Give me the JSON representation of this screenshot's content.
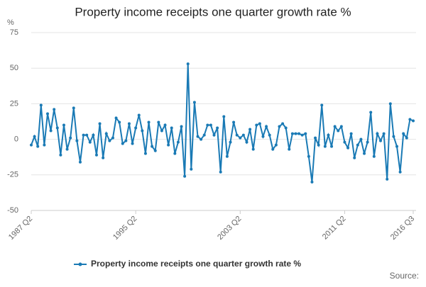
{
  "chart_data": {
    "type": "line",
    "title": "Property income receipts one quarter growth rate %",
    "y_unit": "%",
    "source": "Source:",
    "categories": [
      "1987 Q2",
      null,
      null,
      null,
      null,
      null,
      null,
      null,
      null,
      null,
      null,
      null,
      null,
      null,
      null,
      null,
      null,
      null,
      null,
      null,
      null,
      null,
      null,
      null,
      null,
      null,
      null,
      null,
      null,
      null,
      null,
      null,
      "1995 Q2",
      null,
      null,
      null,
      null,
      null,
      null,
      null,
      null,
      null,
      null,
      null,
      null,
      null,
      null,
      null,
      null,
      null,
      null,
      null,
      null,
      null,
      null,
      null,
      null,
      null,
      null,
      null,
      null,
      null,
      null,
      null,
      "2003 Q2",
      null,
      null,
      null,
      null,
      null,
      null,
      null,
      null,
      null,
      null,
      null,
      null,
      null,
      null,
      null,
      null,
      null,
      null,
      null,
      null,
      null,
      null,
      null,
      null,
      null,
      null,
      null,
      null,
      null,
      null,
      null,
      "2011 Q2",
      null,
      null,
      null,
      null,
      null,
      null,
      null,
      null,
      null,
      null,
      null,
      null,
      null,
      null,
      null,
      null,
      null,
      null,
      null,
      null,
      "2016 Q3"
    ],
    "series": [
      {
        "name": "Property income receipts one quarter growth rate %",
        "color": "#1a7ab5",
        "values": [
          -4,
          2,
          -5,
          24,
          -4,
          18,
          6,
          21,
          8,
          -11,
          10,
          -7,
          1,
          22,
          -1,
          -16,
          3,
          3,
          -2,
          3,
          -11,
          11,
          -13,
          4,
          -1,
          1,
          15,
          12,
          -3,
          -1,
          11,
          -3,
          8,
          17,
          6,
          -10,
          12,
          -5,
          -8,
          12,
          6,
          10,
          -4,
          8,
          -10,
          -2,
          9,
          -26,
          53,
          -21,
          26,
          2,
          0,
          3,
          10,
          10,
          3,
          8,
          -23,
          16,
          -12,
          -2,
          12,
          3,
          1,
          3,
          -2,
          7,
          -7,
          10,
          11,
          2,
          9,
          3,
          -7,
          -4,
          9,
          11,
          8,
          -7,
          4,
          4,
          4,
          3,
          4,
          -12,
          -30,
          1,
          -4,
          24,
          -5,
          3,
          -5,
          9,
          6,
          9,
          -2,
          -6,
          4,
          -13,
          -4,
          0,
          -10,
          -2,
          19,
          -12,
          4,
          -1,
          4,
          -28,
          25,
          2,
          -5,
          -23,
          4,
          1,
          14,
          13
        ]
      }
    ],
    "ylim": [
      -50,
      75
    ],
    "yticks": [
      -50,
      -25,
      0,
      25,
      50,
      75
    ],
    "grid": true
  }
}
